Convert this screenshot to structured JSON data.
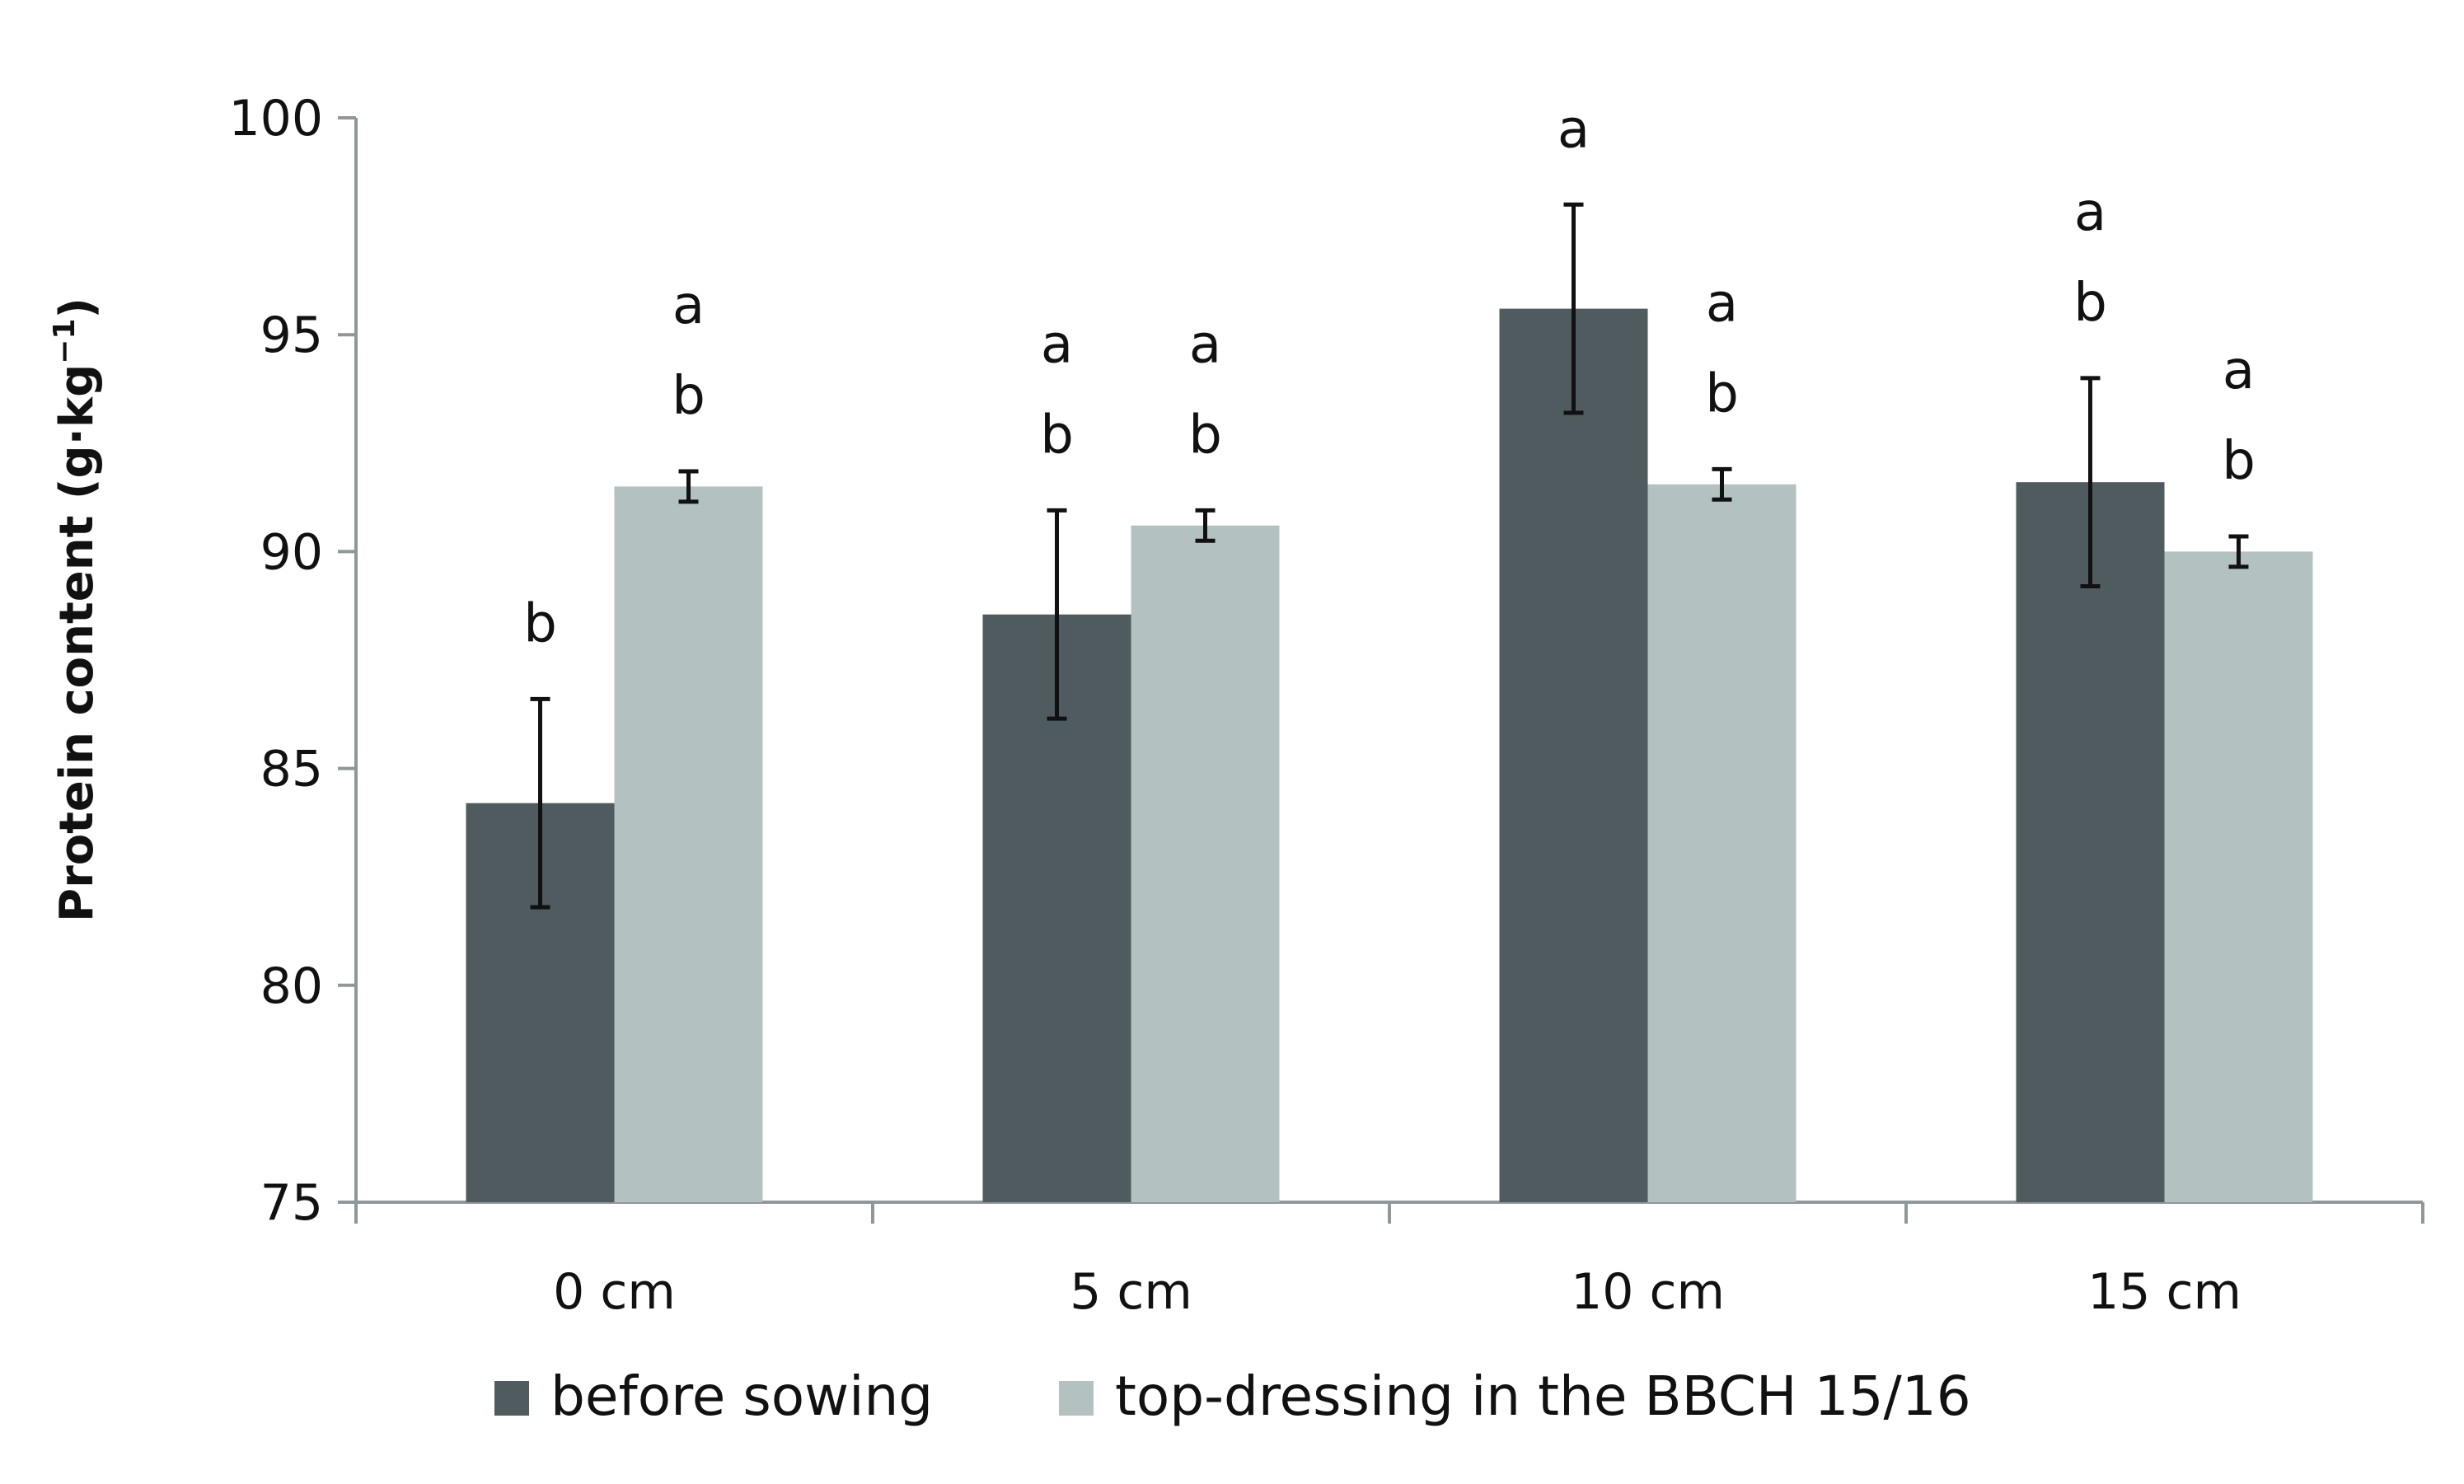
{
  "chart_data": {
    "type": "bar",
    "title": "",
    "xlabel": "",
    "ylabel": {
      "prefix": "Protein content (g·kg",
      "superscript": "−1",
      "suffix": ")"
    },
    "ylim": [
      75,
      100
    ],
    "yticks": [
      "75",
      "80",
      "85",
      "90",
      "95",
      "100"
    ],
    "categories": [
      "0 cm",
      "5 cm",
      "10 cm",
      "15 cm"
    ],
    "series": [
      {
        "name": "before sowing",
        "color": "#4f5b5e",
        "values": [
          84.2,
          88.55,
          95.6,
          91.6
        ],
        "error": [
          2.4,
          2.4,
          2.4,
          2.4
        ],
        "letters": [
          [
            "b"
          ],
          [
            "a",
            "b"
          ],
          [
            "a"
          ],
          [
            "a",
            "b"
          ]
        ]
      },
      {
        "name": "top-dressing in the BBCH 15/16",
        "color": "#b3c1c1",
        "values": [
          91.5,
          90.6,
          91.55,
          90.0
        ],
        "error": [
          0.35,
          0.35,
          0.35,
          0.35
        ],
        "letters": [
          [
            "a",
            "b"
          ],
          [
            "a",
            "b"
          ],
          [
            "a",
            "b"
          ],
          [
            "a",
            "b"
          ]
        ]
      }
    ],
    "legend": {
      "position": "bottom",
      "entries": [
        "before sowing",
        "top-dressing in the BBCH 15/16"
      ]
    }
  }
}
